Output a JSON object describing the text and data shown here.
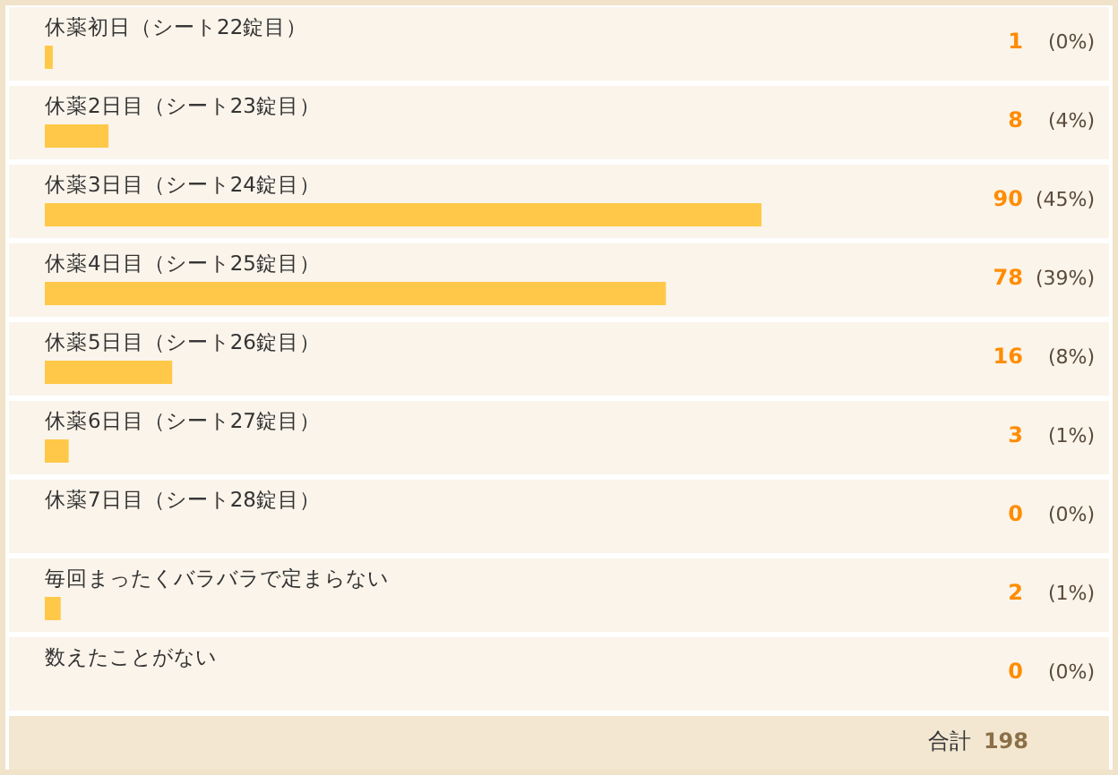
{
  "chart_data": {
    "type": "bar",
    "orientation": "horizontal",
    "categories": [
      "休薬初日（シート22錠目）",
      "休薬2日目（シート23錠目）",
      "休薬3日目（シート24錠目）",
      "休薬4日目（シート25錠目）",
      "休薬5日目（シート26錠目）",
      "休薬6日目（シート27錠目）",
      "休薬7日目（シート28錠目）",
      "毎回まったくバラバラで定まらない",
      "数えたことがない"
    ],
    "values": [
      1,
      8,
      90,
      78,
      16,
      3,
      0,
      2,
      0
    ],
    "color": "#ffc848",
    "data_labels": true,
    "annotations": [
      "(0%)",
      "(4%)",
      "(45%)",
      "(39%)",
      "(8%)",
      "(1%)",
      "(0%)",
      "(1%)",
      "(0%)",
      "合計 198"
    ],
    "tick_labels": "y",
    "grid": false,
    "legend": false
  }
}
